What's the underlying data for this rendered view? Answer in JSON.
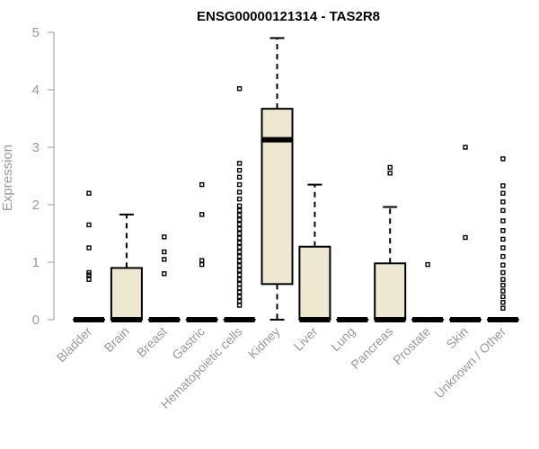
{
  "chart_data": {
    "type": "box",
    "title": "ENSG00000121314 - TAS2R8",
    "xlabel": "",
    "ylabel": "Expression",
    "ylim": [
      0,
      5
    ],
    "yticks": [
      0,
      1,
      2,
      3,
      4,
      5
    ],
    "grid": false,
    "box_fill": "#ede8cf",
    "categories": [
      "Bladder",
      "Brain",
      "Breast",
      "Gastric",
      "Hematopoietic cells",
      "Kidney",
      "Liver",
      "Lung",
      "Pancreas",
      "Prostate",
      "Skin",
      "Unknown / Other"
    ],
    "boxes": [
      {
        "q1": 0,
        "median": 0,
        "q3": 0,
        "whisker_low": 0,
        "whisker_high": 0,
        "outliers": [
          0.7,
          0.78,
          0.82,
          1.25,
          1.65,
          2.2
        ]
      },
      {
        "q1": 0,
        "median": 0,
        "q3": 0.9,
        "whisker_low": 0,
        "whisker_high": 1.83,
        "outliers": []
      },
      {
        "q1": 0,
        "median": 0,
        "q3": 0,
        "whisker_low": 0,
        "whisker_high": 0,
        "outliers": [
          0.8,
          1.05,
          1.18,
          1.44
        ]
      },
      {
        "q1": 0,
        "median": 0,
        "q3": 0,
        "whisker_low": 0,
        "whisker_high": 0,
        "outliers": [
          0.96,
          1.03,
          1.83,
          2.35
        ]
      },
      {
        "q1": 0,
        "median": 0,
        "q3": 0,
        "whisker_low": 0,
        "whisker_high": 0,
        "outliers": [
          0.25,
          0.32,
          0.4,
          0.48,
          0.55,
          0.62,
          0.7,
          0.78,
          0.86,
          0.94,
          1.02,
          1.1,
          1.18,
          1.26,
          1.34,
          1.42,
          1.5,
          1.58,
          1.66,
          1.74,
          1.82,
          1.9,
          1.98,
          2.1,
          2.22,
          2.35,
          2.48,
          2.6,
          2.72,
          4.02
        ]
      },
      {
        "q1": 0.62,
        "median": 3.13,
        "q3": 3.67,
        "whisker_low": 0,
        "whisker_high": 4.9,
        "outliers": []
      },
      {
        "q1": 0,
        "median": 0,
        "q3": 1.27,
        "whisker_low": 0,
        "whisker_high": 2.35,
        "outliers": []
      },
      {
        "q1": 0,
        "median": 0,
        "q3": 0,
        "whisker_low": 0,
        "whisker_high": 0,
        "outliers": []
      },
      {
        "q1": 0,
        "median": 0,
        "q3": 0.98,
        "whisker_low": 0,
        "whisker_high": 1.96,
        "outliers": [
          2.55,
          2.65
        ]
      },
      {
        "q1": 0,
        "median": 0,
        "q3": 0,
        "whisker_low": 0,
        "whisker_high": 0,
        "outliers": [
          0.96
        ]
      },
      {
        "q1": 0,
        "median": 0,
        "q3": 0,
        "whisker_low": 0,
        "whisker_high": 0,
        "outliers": [
          1.43,
          3.0
        ]
      },
      {
        "q1": 0,
        "median": 0,
        "q3": 0,
        "whisker_low": 0,
        "whisker_high": 0,
        "outliers": [
          0.2,
          0.3,
          0.4,
          0.5,
          0.6,
          0.7,
          0.82,
          0.95,
          1.1,
          1.25,
          1.4,
          1.55,
          1.72,
          1.9,
          2.05,
          2.2,
          2.33,
          2.8
        ]
      }
    ]
  }
}
